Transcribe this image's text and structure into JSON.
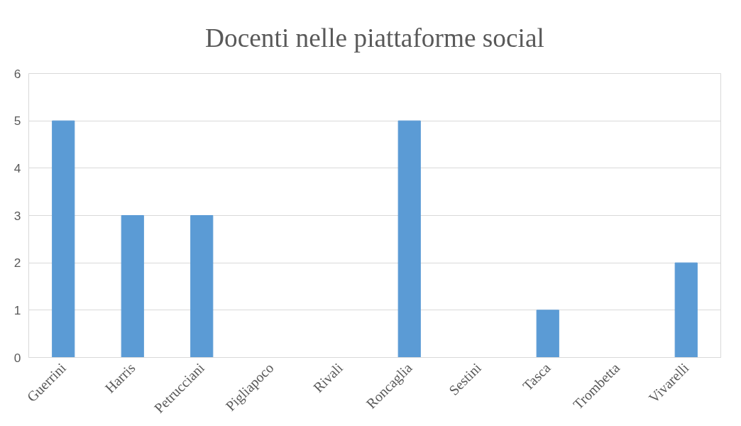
{
  "chart_data": {
    "type": "bar",
    "title": "Docenti nelle piattaforme social",
    "categories": [
      "Guerrini",
      "Harris",
      "Petrucciani",
      "Pigliapoco",
      "Rivali",
      "Roncaglia",
      "Sestini",
      "Tasca",
      "Trombetta",
      "Vivarelli"
    ],
    "values": [
      5,
      3,
      3,
      0,
      0,
      5,
      0,
      1,
      0,
      2
    ],
    "color": "#5b9bd5",
    "ylim": [
      0,
      6
    ],
    "yticks": [
      0,
      1,
      2,
      3,
      4,
      5,
      6
    ],
    "grid": "y"
  }
}
